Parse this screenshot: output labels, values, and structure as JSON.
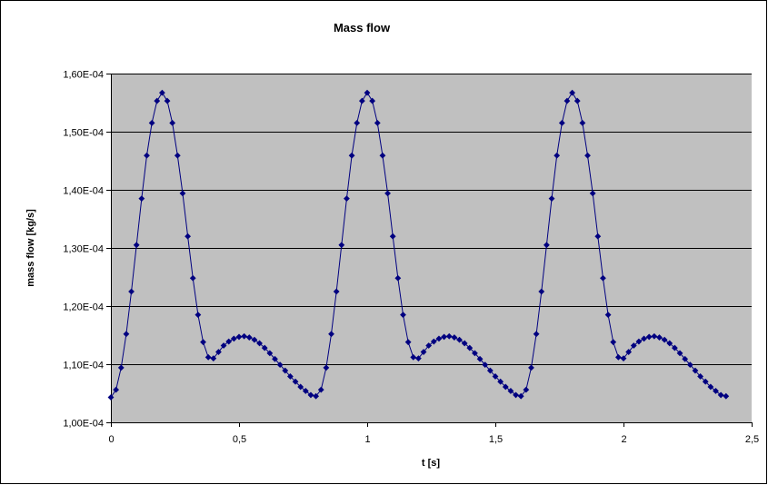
{
  "chart_data": {
    "type": "line",
    "title": "Mass flow",
    "xlabel": "t [s]",
    "ylabel": "mass flow [kg/s]",
    "xlim": [
      0,
      2.5
    ],
    "ylim": [
      0.0001,
      0.00016
    ],
    "x_ticks": [
      0,
      0.5,
      1,
      1.5,
      2,
      2.5
    ],
    "x_tick_labels": [
      "0",
      "0,5",
      "1",
      "1,5",
      "2",
      "2,5"
    ],
    "y_ticks": [
      0.0001,
      0.00011,
      0.00012,
      0.00013,
      0.00014,
      0.00015,
      0.00016
    ],
    "y_tick_labels": [
      "1,00E-04",
      "1,10E-04",
      "1,20E-04",
      "1,30E-04",
      "1,40E-04",
      "1,50E-04",
      "1,60E-04"
    ],
    "grid": "horizontal",
    "legend": "none",
    "colors": {
      "plot_background": "#c0c0c0",
      "series": "#000080",
      "gridline": "#000000"
    },
    "series": [
      {
        "marker": "diamond",
        "x": [
          0,
          0.02,
          0.04,
          0.06,
          0.08,
          0.1,
          0.12,
          0.14,
          0.16,
          0.18,
          0.2,
          0.22,
          0.24,
          0.26,
          0.28,
          0.3,
          0.32,
          0.34,
          0.36,
          0.38,
          0.4,
          0.42,
          0.44,
          0.46,
          0.48,
          0.5,
          0.52,
          0.54,
          0.56,
          0.58,
          0.6,
          0.62,
          0.64,
          0.66,
          0.68,
          0.7,
          0.72,
          0.74,
          0.76,
          0.78,
          0.8,
          0.82,
          0.84,
          0.86,
          0.88,
          0.9,
          0.92,
          0.94,
          0.96,
          0.98,
          1,
          1.02,
          1.04,
          1.06,
          1.08,
          1.1,
          1.12,
          1.14,
          1.16,
          1.18,
          1.2,
          1.22,
          1.24,
          1.26,
          1.28,
          1.3,
          1.32,
          1.34,
          1.36,
          1.38,
          1.4,
          1.42,
          1.44,
          1.46,
          1.48,
          1.5,
          1.52,
          1.54,
          1.56,
          1.58,
          1.6,
          1.62,
          1.64,
          1.66,
          1.68,
          1.7,
          1.72,
          1.74,
          1.76,
          1.78,
          1.8,
          1.82,
          1.84,
          1.86,
          1.88,
          1.9,
          1.92,
          1.94,
          1.96,
          1.98,
          2,
          2.02,
          2.04,
          2.06,
          2.08,
          2.1,
          2.12,
          2.14,
          2.16,
          2.18,
          2.2,
          2.22,
          2.24,
          2.26,
          2.28,
          2.3,
          2.32,
          2.34,
          2.36,
          2.38,
          2.4
        ],
        "y": [
          0.0001043,
          0.0001056,
          0.0001094,
          0.0001152,
          0.0001225,
          0.0001305,
          0.0001385,
          0.0001459,
          0.0001515,
          0.0001553,
          0.0001567,
          0.0001553,
          0.0001515,
          0.0001459,
          0.0001394,
          0.000132,
          0.0001248,
          0.0001185,
          0.0001138,
          0.0001112,
          0.000111,
          0.0001121,
          0.0001132,
          0.0001139,
          0.0001144,
          0.0001147,
          0.0001148,
          0.0001146,
          0.0001142,
          0.0001136,
          0.0001128,
          0.0001119,
          0.0001109,
          0.0001099,
          0.0001089,
          0.0001079,
          0.000107,
          0.0001061,
          0.0001054,
          0.0001047,
          0.0001045,
          0.0001056,
          0.0001094,
          0.0001152,
          0.0001225,
          0.0001305,
          0.0001385,
          0.0001459,
          0.0001515,
          0.0001553,
          0.0001567,
          0.0001553,
          0.0001515,
          0.0001459,
          0.0001394,
          0.000132,
          0.0001248,
          0.0001185,
          0.0001138,
          0.0001112,
          0.000111,
          0.0001121,
          0.0001132,
          0.0001139,
          0.0001144,
          0.0001147,
          0.0001148,
          0.0001146,
          0.0001142,
          0.0001136,
          0.0001128,
          0.0001119,
          0.0001109,
          0.0001099,
          0.0001089,
          0.0001079,
          0.000107,
          0.0001061,
          0.0001054,
          0.0001047,
          0.0001045,
          0.0001056,
          0.0001094,
          0.0001152,
          0.0001225,
          0.0001305,
          0.0001385,
          0.0001459,
          0.0001515,
          0.0001553,
          0.0001567,
          0.0001553,
          0.0001515,
          0.0001459,
          0.0001394,
          0.000132,
          0.0001248,
          0.0001185,
          0.0001138,
          0.0001112,
          0.000111,
          0.0001121,
          0.0001132,
          0.0001139,
          0.0001144,
          0.0001147,
          0.0001148,
          0.0001146,
          0.0001142,
          0.0001136,
          0.0001128,
          0.0001119,
          0.0001109,
          0.0001099,
          0.0001089,
          0.0001079,
          0.000107,
          0.0001061,
          0.0001054,
          0.0001047,
          0.0001045
        ]
      }
    ]
  }
}
